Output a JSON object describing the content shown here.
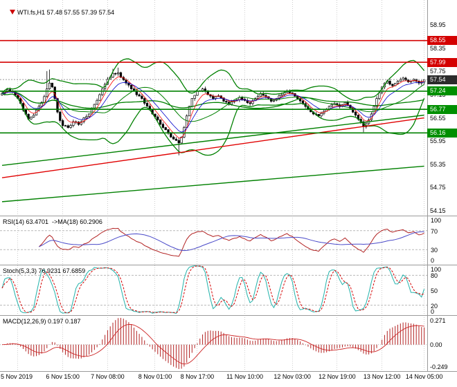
{
  "chart_data": {
    "type": "candlestick",
    "title": "WTI.fs,H1",
    "symbol": "WTI.fs",
    "timeframe": "H1",
    "symbol_line": "WTI.fs,H1 57.48 57.55 57.39 57.54",
    "ohlc_last": {
      "open": 57.48,
      "high": 57.55,
      "low": 57.39,
      "close": 57.54
    },
    "ylim": [
      54.02,
      59.6
    ],
    "price_ticks": [
      58.95,
      58.35,
      57.75,
      57.15,
      56.55,
      55.95,
      55.35,
      54.75,
      54.15
    ],
    "bars_total": 161,
    "close_anchors": [
      [
        0,
        57.18
      ],
      [
        2,
        57.28
      ],
      [
        4,
        57.22
      ],
      [
        6,
        57.05
      ],
      [
        8,
        56.75
      ],
      [
        10,
        56.52
      ],
      [
        12,
        56.62
      ],
      [
        14,
        56.85
      ],
      [
        15,
        56.95
      ],
      [
        16,
        57.1
      ],
      [
        17,
        57.3
      ],
      [
        18,
        57.45
      ],
      [
        19,
        57.35
      ],
      [
        20,
        57.05
      ],
      [
        21,
        56.7
      ],
      [
        22,
        56.48
      ],
      [
        23,
        56.35
      ],
      [
        25,
        56.3
      ],
      [
        27,
        56.45
      ],
      [
        29,
        56.38
      ],
      [
        31,
        56.55
      ],
      [
        33,
        56.65
      ],
      [
        35,
        56.9
      ],
      [
        37,
        57.15
      ],
      [
        38,
        57.3
      ],
      [
        40,
        57.55
      ],
      [
        42,
        57.7
      ],
      [
        44,
        57.72
      ],
      [
        45,
        57.6
      ],
      [
        47,
        57.45
      ],
      [
        49,
        57.3
      ],
      [
        51,
        57.15
      ],
      [
        53,
        57.05
      ],
      [
        55,
        56.85
      ],
      [
        57,
        56.65
      ],
      [
        59,
        56.5
      ],
      [
        61,
        56.3
      ],
      [
        63,
        56.15
      ],
      [
        65,
        56.0
      ],
      [
        67,
        55.9
      ],
      [
        68,
        56.05
      ],
      [
        69,
        56.3
      ],
      [
        70,
        56.6
      ],
      [
        71,
        56.85
      ],
      [
        72,
        57.05
      ],
      [
        74,
        57.25
      ],
      [
        76,
        57.3
      ],
      [
        78,
        57.15
      ],
      [
        80,
        57.05
      ],
      [
        82,
        57.12
      ],
      [
        84,
        56.98
      ],
      [
        86,
        56.9
      ],
      [
        88,
        57.0
      ],
      [
        90,
        57.08
      ],
      [
        92,
        57.0
      ],
      [
        94,
        56.92
      ],
      [
        96,
        57.05
      ],
      [
        98,
        57.18
      ],
      [
        100,
        57.1
      ],
      [
        102,
        56.98
      ],
      [
        104,
        57.05
      ],
      [
        106,
        57.15
      ],
      [
        108,
        57.25
      ],
      [
        110,
        57.18
      ],
      [
        112,
        57.05
      ],
      [
        114,
        56.92
      ],
      [
        116,
        56.78
      ],
      [
        118,
        56.65
      ],
      [
        120,
        56.6
      ],
      [
        122,
        56.72
      ],
      [
        124,
        56.85
      ],
      [
        126,
        56.92
      ],
      [
        128,
        56.85
      ],
      [
        130,
        56.95
      ],
      [
        132,
        56.8
      ],
      [
        134,
        56.62
      ],
      [
        136,
        56.45
      ],
      [
        137,
        56.32
      ],
      [
        138,
        56.4
      ],
      [
        139,
        56.5
      ],
      [
        140,
        56.65
      ],
      [
        141,
        56.85
      ],
      [
        142,
        57.05
      ],
      [
        143,
        57.2
      ],
      [
        144,
        57.35
      ],
      [
        145,
        57.45
      ],
      [
        146,
        57.5
      ],
      [
        147,
        57.42
      ],
      [
        148,
        57.38
      ],
      [
        150,
        57.5
      ],
      [
        152,
        57.58
      ],
      [
        154,
        57.48
      ],
      [
        156,
        57.55
      ],
      [
        158,
        57.45
      ],
      [
        160,
        57.54
      ]
    ],
    "wick_overrides": [
      {
        "bar": 17,
        "high": 57.76
      },
      {
        "bar": 18,
        "high": 57.8
      },
      {
        "bar": 42,
        "high": 57.82
      },
      {
        "bar": 44,
        "high": 57.85
      },
      {
        "bar": 67,
        "low": 55.58
      },
      {
        "bar": 137,
        "low": 56.18
      }
    ],
    "levels": [
      {
        "price": 58.55,
        "label": "58.55",
        "kind": "resistance",
        "color": "#d40000"
      },
      {
        "price": 57.99,
        "label": "57.99",
        "kind": "resistance",
        "color": "#d40000"
      },
      {
        "price": 57.24,
        "label": "57.24",
        "kind": "support",
        "color": "#008000"
      },
      {
        "price": 56.77,
        "label": "56.77",
        "kind": "support",
        "color": "#008000"
      },
      {
        "price": 56.16,
        "label": "56.16",
        "kind": "support",
        "color": "#008000"
      }
    ],
    "current_price": {
      "value": 57.54,
      "label": "57.54"
    },
    "trendlines": [
      {
        "from": [
          0,
          55.0
        ],
        "to": [
          160,
          56.55
        ],
        "color": "#e00000"
      },
      {
        "from": [
          0,
          55.32
        ],
        "to": [
          160,
          56.62
        ],
        "color": "#008000"
      },
      {
        "from": [
          0,
          54.38
        ],
        "to": [
          160,
          55.3
        ],
        "color": "#008000"
      }
    ],
    "time_axis": [
      {
        "bar": 6,
        "label": "5 Nov 2019"
      },
      {
        "bar": 23,
        "label": "6 Nov 15:00"
      },
      {
        "bar": 40,
        "label": "7 Nov 08:00"
      },
      {
        "bar": 58,
        "label": "8 Nov 01:00"
      },
      {
        "bar": 74,
        "label": "8 Nov 17:00"
      },
      {
        "bar": 92,
        "label": "11 Nov 10:00"
      },
      {
        "bar": 110,
        "label": "12 Nov 03:00"
      },
      {
        "bar": 127,
        "label": "12 Nov 19:00"
      },
      {
        "bar": 144,
        "label": "13 Nov 12:00"
      },
      {
        "bar": 160,
        "label": "14 Nov 05:00"
      }
    ],
    "indicators": {
      "rsi": {
        "header": "RSI(14) 63.4701  ->MA(18) 60.2906",
        "period": 14,
        "ma_period": 18,
        "value": 63.4701,
        "ma_value": 60.2906,
        "axis_ticks": [
          100,
          70,
          30,
          0
        ],
        "levels": [
          70,
          30
        ],
        "range": [
          0,
          100
        ]
      },
      "stoch": {
        "header": "Stoch(5,3,3) 76.9231 67.6859",
        "k": 5,
        "d": 3,
        "slowing": 3,
        "value": 76.9231,
        "signal_value": 67.6859,
        "axis_ticks": [
          100,
          80,
          50,
          20,
          0
        ],
        "levels": [
          80,
          20
        ],
        "range": [
          0,
          100
        ]
      },
      "macd": {
        "header": "MACD(12,26,9) 0.197 0.187",
        "fast": 12,
        "slow": 26,
        "signal": 9,
        "value": 0.197,
        "signal_value": 0.187,
        "axis_ticks": [
          0.271,
          0,
          -0.249
        ],
        "axis_labels": [
          "0.271",
          "0.00",
          "-0.249"
        ]
      }
    },
    "colors": {
      "candle": "#000000",
      "bb": "#008000",
      "ma_fast": "#ff0000",
      "ma_slow": "#0000cc",
      "ma_smooth": "#008000",
      "rsi_line": "#b22222",
      "rsi_ma": "#4848c8",
      "stoch_main": "#20b2aa",
      "stoch_signal": "#d40000",
      "macd_hist": "#b22222",
      "macd_signal": "#cc2222",
      "grid": "#cdcdcd",
      "level_dash": "#b8b8b8",
      "current_line": "#9a9a9a",
      "tag_current_bg": "#2b2b2b",
      "tag_res_bg": "#d40000",
      "tag_sup_bg": "#008f00",
      "panel_border": "#9a9a9a"
    }
  }
}
